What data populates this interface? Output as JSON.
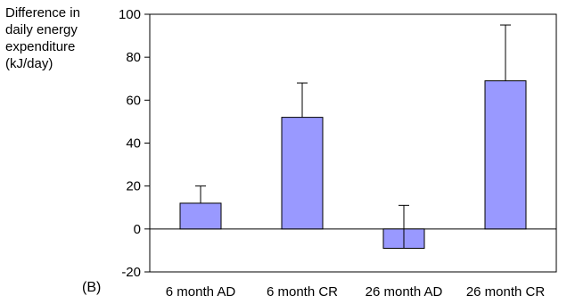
{
  "chart_data": {
    "type": "bar",
    "panel_label": "(B)",
    "ylabel_lines": [
      "Difference in",
      "daily energy",
      "expenditure",
      "(kJ/day)"
    ],
    "xlabel": "",
    "categories": [
      "6 month AD",
      "6 month CR",
      "26 month AD",
      "26 month CR"
    ],
    "values": [
      12,
      52,
      -9,
      69
    ],
    "error_upper": [
      20,
      68,
      11,
      95
    ],
    "ylim": [
      -20,
      100
    ],
    "yticks": [
      -20,
      0,
      20,
      40,
      60,
      80,
      100
    ],
    "grid": false,
    "legend": "none",
    "bar_color": "#9999ff"
  }
}
